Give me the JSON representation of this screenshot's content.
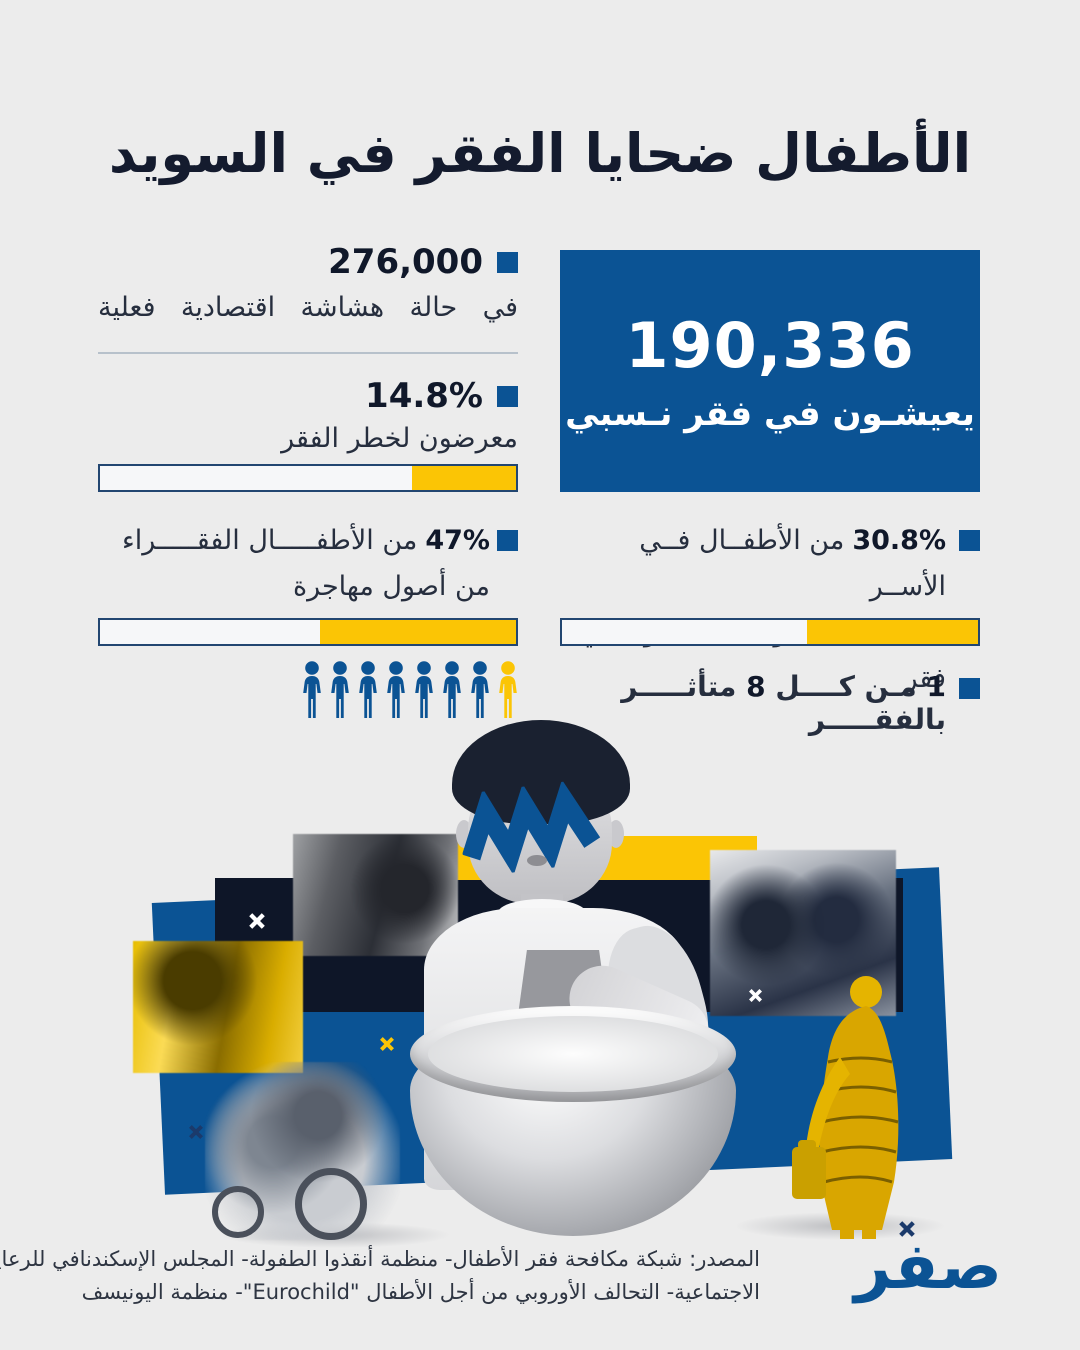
{
  "title": "الأطفال ضحايا الفقر في السويد",
  "colors": {
    "blue": "#0b5394",
    "yellow": "#fbc505",
    "navy": "#141b2e",
    "background": "#ececec",
    "white": "#ffffff"
  },
  "stats": {
    "economic_fragility": {
      "value": "276,000",
      "label": "في حالة هشاشة اقتصادية فعلية"
    },
    "poverty_risk": {
      "value": "14.8%",
      "label": "معرضون لخطر الفقر",
      "bar_fill_percent": 25
    },
    "relative_poverty": {
      "value": "190,336",
      "label": "يعيشـون في فقر نـسبي"
    },
    "migrant_origin": {
      "value": "47%",
      "label_rest": "من الأطفـــــال الفقـــــراء",
      "label_line2": "من أصول مهاجرة",
      "bar_fill_percent": 47
    },
    "single_parent": {
      "value": "30.8%",
      "label_rest": "من الأطفــال فــي الأســر",
      "label_line2": "ذات العائــل الواحد يعيشــون في فقر",
      "bar_fill_percent": 41
    },
    "one_in_eight": {
      "num1": "1",
      "text1": "مـن كــــل",
      "num2": "8",
      "text2": "متأثـــــر بالفقـــــر",
      "total_icons": 8,
      "highlighted_icons": 1
    }
  },
  "source": {
    "lines": [
      "المصدر: شبكة مكافحة فقر الأطفال- منظمة أنقذوا الطفولة- المجلس الإسكندنافي للرعاية",
      "الاجتماعية- التحالف الأوروبي من أجل الأطفال \"Eurochild\"- منظمة اليونيسف"
    ]
  },
  "logo_text": "صفر",
  "chart_data": [
    {
      "type": "stat",
      "label": "يعيشون في فقر نسبي",
      "value": 190336
    },
    {
      "type": "stat",
      "label": "في حالة هشاشة اقتصادية فعلية",
      "value": 276000
    },
    {
      "type": "bar",
      "title": "معرضون لخطر الفقر",
      "categories": [
        "معرضون لخطر الفقر"
      ],
      "values": [
        14.8
      ],
      "unit": "%",
      "bar_fill_percent_shown": 25
    },
    {
      "type": "bar",
      "title": "من الأطفال الفقراء من أصول مهاجرة",
      "categories": [
        "من الأطفال الفقراء من أصول مهاجرة"
      ],
      "values": [
        47
      ],
      "unit": "%",
      "bar_fill_percent_shown": 47
    },
    {
      "type": "bar",
      "title": "من الأطفال في الأسر ذات العائل الواحد يعيشون في فقر",
      "categories": [
        "من الأطفال في الأسر ذات العائل الواحد يعيشون في فقر"
      ],
      "values": [
        30.8
      ],
      "unit": "%",
      "bar_fill_percent_shown": 41
    },
    {
      "type": "pictograph",
      "title": "1 من كل 8 متأثر بالفقر",
      "total_icons": 8,
      "highlighted_icons": 1
    }
  ]
}
